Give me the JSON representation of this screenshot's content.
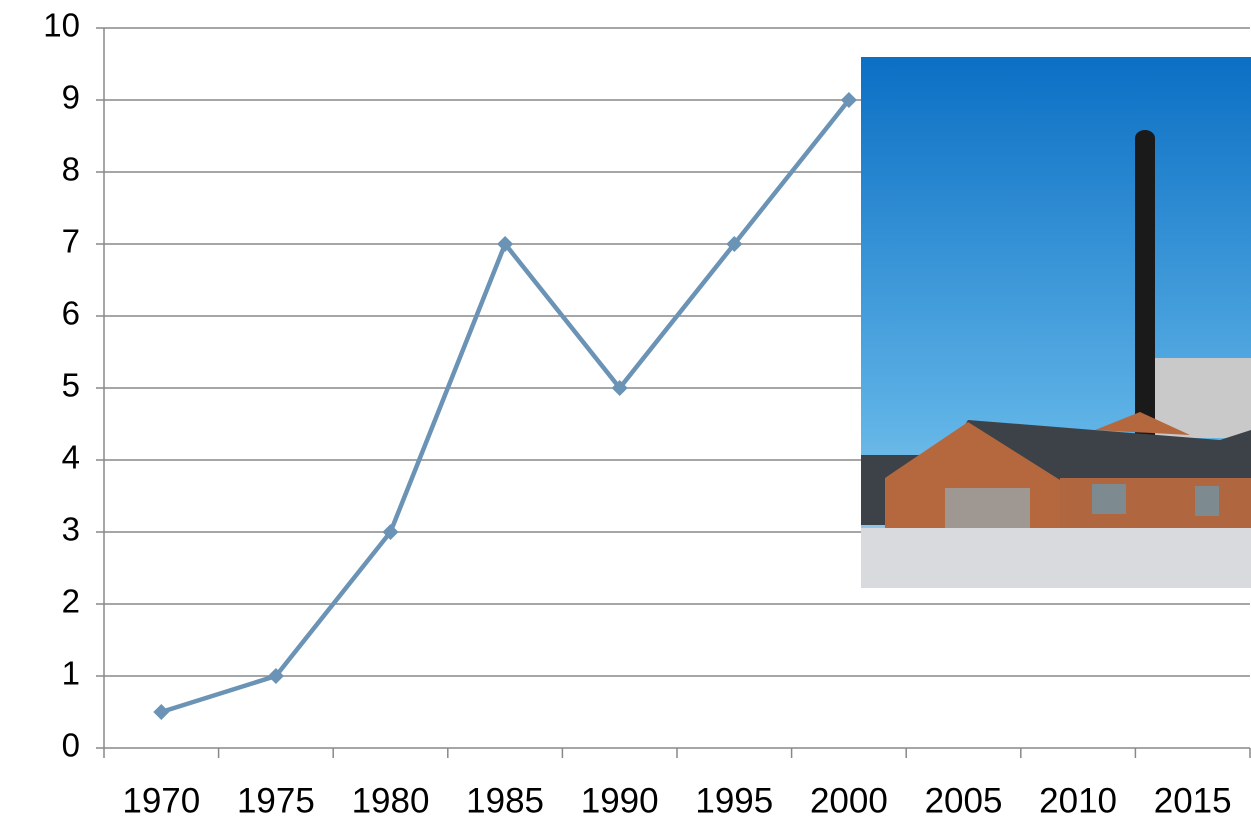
{
  "chart_data": {
    "type": "line",
    "categories": [
      "1970",
      "1975",
      "1980",
      "1985",
      "1990",
      "1995",
      "2000",
      "2005",
      "2010",
      "2015"
    ],
    "values": [
      0.5,
      1,
      3,
      7,
      5,
      7,
      9,
      null,
      null,
      null
    ],
    "color": "#6b93b5",
    "ylim": [
      0,
      10
    ],
    "yticks": [
      0,
      1,
      2,
      3,
      4,
      5,
      6,
      7,
      8,
      9,
      10
    ],
    "grid": true
  }
}
